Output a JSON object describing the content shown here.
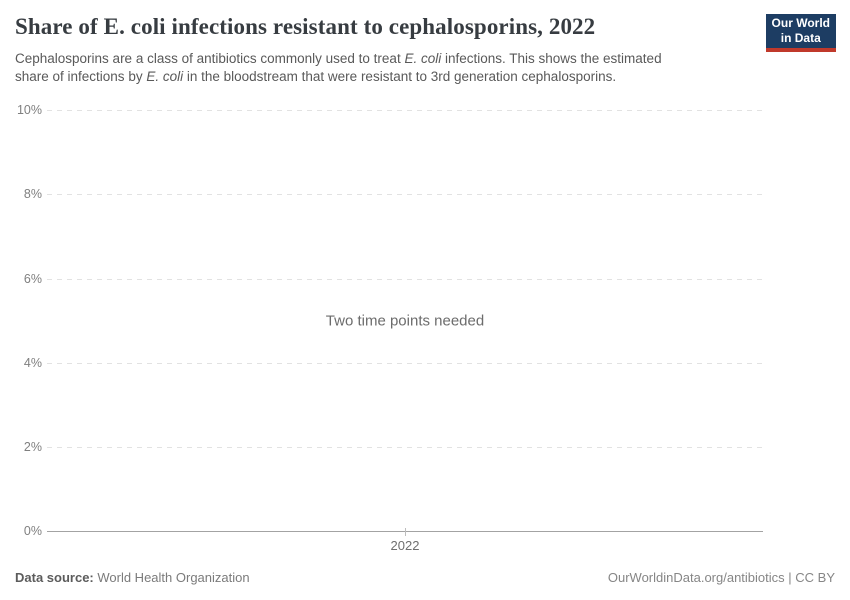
{
  "header": {
    "title": "Share of E. coli infections resistant to cephalosporins, 2022",
    "subtitle_segments": [
      {
        "text": "Cephalosporins are a class of antibiotics commonly used to treat "
      },
      {
        "text": "E. coli",
        "italic": true
      },
      {
        "text": " infections. This shows the estimated"
      },
      {
        "break": true
      },
      {
        "text": "share of infections by "
      },
      {
        "text": "E. coli",
        "italic": true
      },
      {
        "text": " in the bloodstream that were resistant to 3rd generation cephalosporins."
      }
    ],
    "logo": {
      "line1": "Our World",
      "line2": "in Data",
      "background_color": "#1d3d63",
      "accent_color": "#c0392b"
    }
  },
  "chart_data": {
    "type": "line",
    "title": "Share of E. coli infections resistant to cephalosporins, 2022",
    "series": [],
    "empty_state_message": "Two time points needed",
    "x_ticks": [
      "2022"
    ],
    "y_ticks": [
      "0%",
      "2%",
      "4%",
      "6%",
      "8%",
      "10%"
    ],
    "ylim": [
      0,
      10
    ],
    "grid": true,
    "legend": "none"
  },
  "footer": {
    "source_label": "Data source:",
    "source_value": " World Health Organization",
    "attribution": "OurWorldinData.org/antibiotics | CC BY"
  },
  "colors": {
    "title": "#373c41",
    "subtitle": "#595959",
    "axis_label": "#7f7f7f",
    "gridline": "#e2e2e2",
    "axis_line": "#a3a3a3",
    "message": "#6c6c6c"
  }
}
